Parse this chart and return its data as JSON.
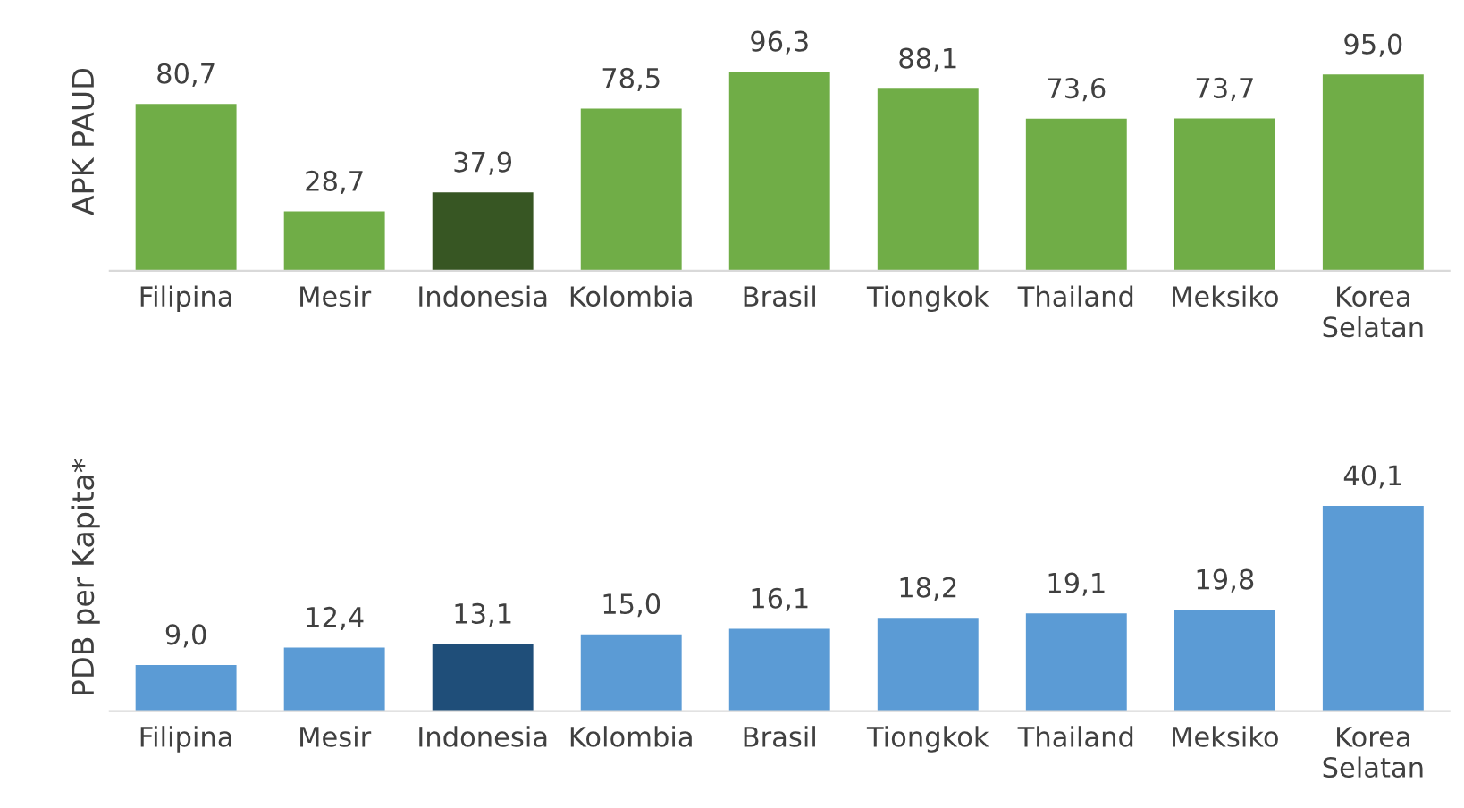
{
  "chart_data": [
    {
      "type": "bar",
      "ylabel": "APK PAUD",
      "categories": [
        "Filipina",
        "Mesir",
        "Indonesia",
        "Kolombia",
        "Brasil",
        "Tiongkok",
        "Thailand",
        "Meksiko",
        "Korea\nSelatan"
      ],
      "values": [
        80.7,
        28.7,
        37.9,
        78.5,
        96.3,
        88.1,
        73.6,
        73.7,
        95.0
      ],
      "value_labels": [
        "80,7",
        "28,7",
        "37,9",
        "78,5",
        "96,3",
        "88,1",
        "73,6",
        "73,7",
        "95,0"
      ],
      "colors": [
        "#70ad47",
        "#70ad47",
        "#375623",
        "#70ad47",
        "#70ad47",
        "#70ad47",
        "#70ad47",
        "#70ad47",
        "#70ad47"
      ],
      "tick_labels": "x",
      "grid": false,
      "legend": false
    },
    {
      "type": "bar",
      "ylabel": "PDB per Kapita*",
      "categories": [
        "Filipina",
        "Mesir",
        "Indonesia",
        "Kolombia",
        "Brasil",
        "Tiongkok",
        "Thailand",
        "Meksiko",
        "Korea\nSelatan"
      ],
      "values": [
        9.0,
        12.4,
        13.1,
        15.0,
        16.1,
        18.2,
        19.1,
        19.8,
        40.1
      ],
      "value_labels": [
        "9,0",
        "12,4",
        "13,1",
        "15,0",
        "16,1",
        "18,2",
        "19,1",
        "19,8",
        "40,1"
      ],
      "colors": [
        "#5b9bd5",
        "#5b9bd5",
        "#1f4e79",
        "#5b9bd5",
        "#5b9bd5",
        "#5b9bd5",
        "#5b9bd5",
        "#5b9bd5",
        "#5b9bd5"
      ],
      "tick_labels": "x",
      "grid": false,
      "legend": false
    }
  ]
}
